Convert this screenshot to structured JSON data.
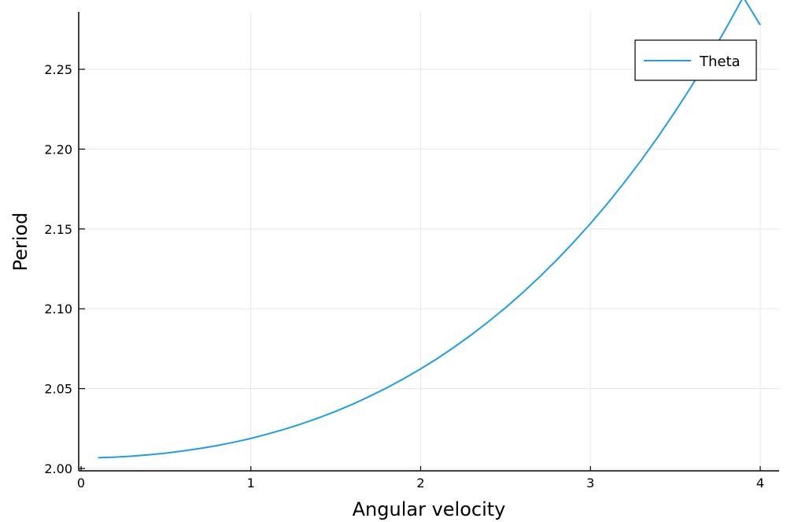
{
  "chart_data": {
    "type": "line",
    "xlabel": "Angular velocity",
    "ylabel": "Period",
    "xlim": [
      0,
      4.1
    ],
    "ylim": [
      1.999,
      2.287
    ],
    "xticks": [
      0,
      1,
      2,
      3,
      4
    ],
    "xtick_labels": [
      "0",
      "1",
      "2",
      "3",
      "4"
    ],
    "yticks": [
      2.0,
      2.05,
      2.1,
      2.15,
      2.2,
      2.25
    ],
    "ytick_labels": [
      "2.00",
      "2.05",
      "2.10",
      "2.15",
      "2.20",
      "2.25"
    ],
    "grid": true,
    "legend_position": "top-right",
    "series": [
      {
        "name": "Theta",
        "color": "#1f9ee6",
        "x": [
          0.1,
          0.2,
          0.3,
          0.4,
          0.5,
          0.6,
          0.7,
          0.8,
          0.9,
          1.0,
          1.1,
          1.2,
          1.3,
          1.4,
          1.5,
          1.6,
          1.7,
          1.8,
          1.9,
          2.0,
          2.1,
          2.2,
          2.3,
          2.4,
          2.5,
          2.6,
          2.7,
          2.8,
          2.9,
          3.0,
          3.1,
          3.2,
          3.3,
          3.4,
          3.5,
          3.6,
          3.7,
          3.8,
          3.9,
          4.0
        ],
        "y": [
          2.0067,
          2.0071,
          2.0077,
          2.0086,
          2.0096,
          2.011,
          2.0125,
          2.0143,
          2.0164,
          2.0188,
          2.0216,
          2.0246,
          2.028,
          2.0317,
          2.0358,
          2.0403,
          2.0452,
          2.0505,
          2.0562,
          2.0624,
          2.069,
          2.0762,
          2.0838,
          2.092,
          2.1007,
          2.11,
          2.1199,
          2.1304,
          2.1416,
          2.1534,
          2.1659,
          2.1792,
          2.1932,
          2.208,
          2.2237,
          2.2402,
          2.2576,
          2.2759,
          2.2952,
          2.2777
        ]
      }
    ]
  }
}
